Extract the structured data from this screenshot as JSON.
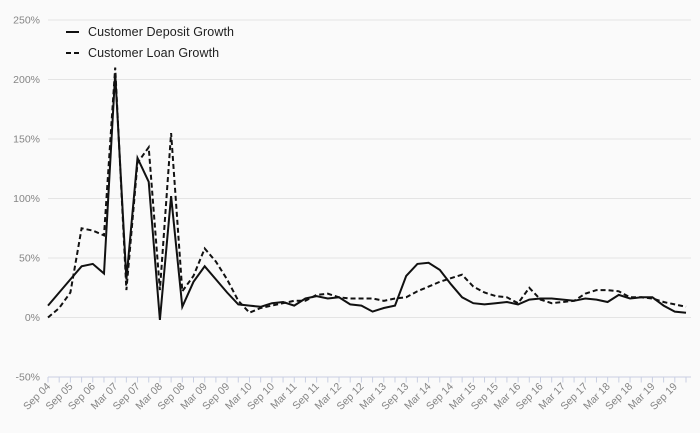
{
  "chart_data": {
    "type": "line",
    "title": "",
    "xlabel": "",
    "ylabel": "",
    "ylim": [
      -50,
      250
    ],
    "grid": "horizontal",
    "legend_position": "top-left",
    "y_tick_labels": [
      "250%",
      "200%",
      "150%",
      "100%",
      "50%",
      "0%",
      "-50%"
    ],
    "y_tick_values": [
      250,
      200,
      150,
      100,
      50,
      0,
      -50
    ],
    "x_labels": [
      "Sep 04",
      "Sep 05",
      "Sep 06",
      "Mar 07",
      "Sep 07",
      "Mar 08",
      "Sep 08",
      "Mar 09",
      "Sep 09",
      "Mar 10",
      "Sep 10",
      "Mar 11",
      "Sep 11",
      "Mar 12",
      "Sep 12",
      "Mar 13",
      "Sep 13",
      "Mar 14",
      "Sep 14",
      "Mar 15",
      "Sep 15",
      "Mar 16",
      "Sep 16",
      "Mar 17",
      "Sep 17",
      "Mar 18",
      "Sep 18",
      "Mar 19",
      "Sep 19"
    ],
    "x_label_every_n_points": 2,
    "n_points": 58,
    "series": [
      {
        "name": "Customer Deposit Growth",
        "style": "solid",
        "color": "#111111",
        "values": [
          10,
          21,
          32,
          43,
          45,
          37,
          205,
          32,
          134,
          114,
          -2,
          102,
          9,
          30,
          43,
          32,
          21,
          11,
          10,
          9,
          12,
          13,
          10,
          16,
          18,
          16,
          17,
          11,
          10,
          5,
          8,
          10,
          35,
          45,
          46,
          40,
          28,
          17,
          12,
          11,
          12,
          13,
          11,
          15,
          16,
          16,
          15,
          14,
          16,
          15,
          13,
          19,
          16,
          17,
          17,
          10,
          5,
          4
        ]
      },
      {
        "name": "Customer Loan Growth",
        "style": "dashed",
        "color": "#111111",
        "values": [
          0,
          8,
          21,
          75,
          73,
          69,
          210,
          23,
          130,
          143,
          23,
          155,
          22,
          35,
          58,
          47,
          32,
          14,
          4,
          8,
          10,
          12,
          14,
          14,
          19,
          20,
          17,
          16,
          16,
          16,
          14,
          16,
          17,
          22,
          26,
          30,
          33,
          36,
          26,
          21,
          18,
          17,
          12,
          25,
          15,
          12,
          13,
          14,
          20,
          23,
          23,
          22,
          17,
          17,
          16,
          13,
          11,
          9
        ]
      }
    ],
    "colors": {
      "background": "#fafafa",
      "gridline": "#e4e4e4",
      "axis_line": "#c9cfe2",
      "tick": "#c9cfe2",
      "tick_label": "#858585",
      "line": "#111111"
    }
  }
}
